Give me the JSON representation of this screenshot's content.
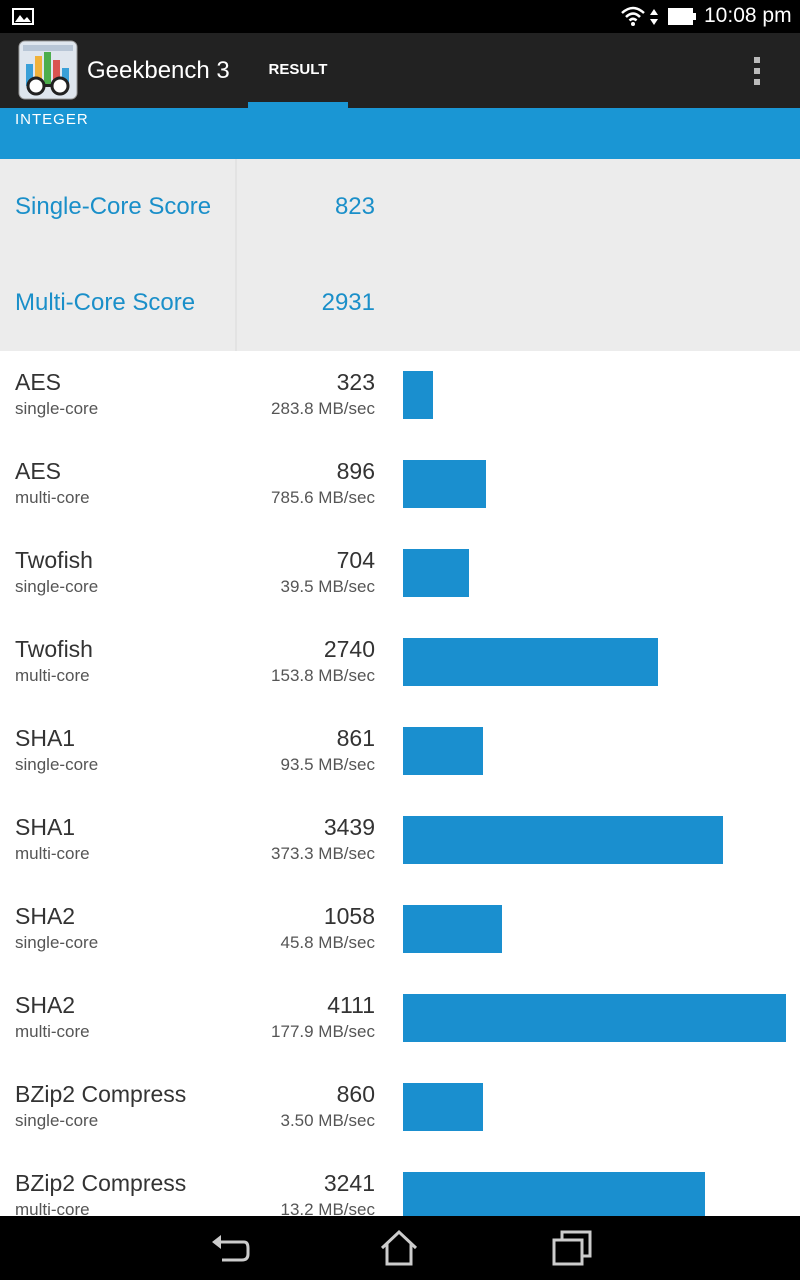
{
  "status_bar": {
    "time": "10:08 pm",
    "icons": [
      "gallery-icon",
      "wifi-icon",
      "signal-arrows-icon",
      "battery-icon"
    ]
  },
  "app": {
    "title": "Geekbench 3",
    "icon": "geekbench-app-icon"
  },
  "tabs": [
    {
      "label": "RESULT",
      "active": true
    }
  ],
  "section": {
    "title": "INTEGER"
  },
  "scores": [
    {
      "label": "Single-Core Score",
      "value": "823"
    },
    {
      "label": "Multi-Core Score",
      "value": "2931"
    }
  ],
  "results": [
    {
      "name": "AES",
      "mode": "single-core",
      "score": "323",
      "rate": "283.8 MB/sec"
    },
    {
      "name": "AES",
      "mode": "multi-core",
      "score": "896",
      "rate": "785.6 MB/sec"
    },
    {
      "name": "Twofish",
      "mode": "single-core",
      "score": "704",
      "rate": "39.5 MB/sec"
    },
    {
      "name": "Twofish",
      "mode": "multi-core",
      "score": "2740",
      "rate": "153.8 MB/sec"
    },
    {
      "name": "SHA1",
      "mode": "single-core",
      "score": "861",
      "rate": "93.5 MB/sec"
    },
    {
      "name": "SHA1",
      "mode": "multi-core",
      "score": "3439",
      "rate": "373.3 MB/sec"
    },
    {
      "name": "SHA2",
      "mode": "single-core",
      "score": "1058",
      "rate": "45.8 MB/sec"
    },
    {
      "name": "SHA2",
      "mode": "multi-core",
      "score": "4111",
      "rate": "177.9 MB/sec"
    },
    {
      "name": "BZip2 Compress",
      "mode": "single-core",
      "score": "860",
      "rate": "3.50 MB/sec"
    },
    {
      "name": "BZip2 Compress",
      "mode": "multi-core",
      "score": "3241",
      "rate": "13.2 MB/sec"
    }
  ],
  "nav_bar": {
    "icons": [
      "back-icon",
      "home-icon",
      "recent-apps-icon"
    ]
  },
  "colors": {
    "accent": "#1a96d4",
    "bar": "#1a8fcf",
    "action_bar": "#222222",
    "score_text": "#1a8fc9"
  }
}
